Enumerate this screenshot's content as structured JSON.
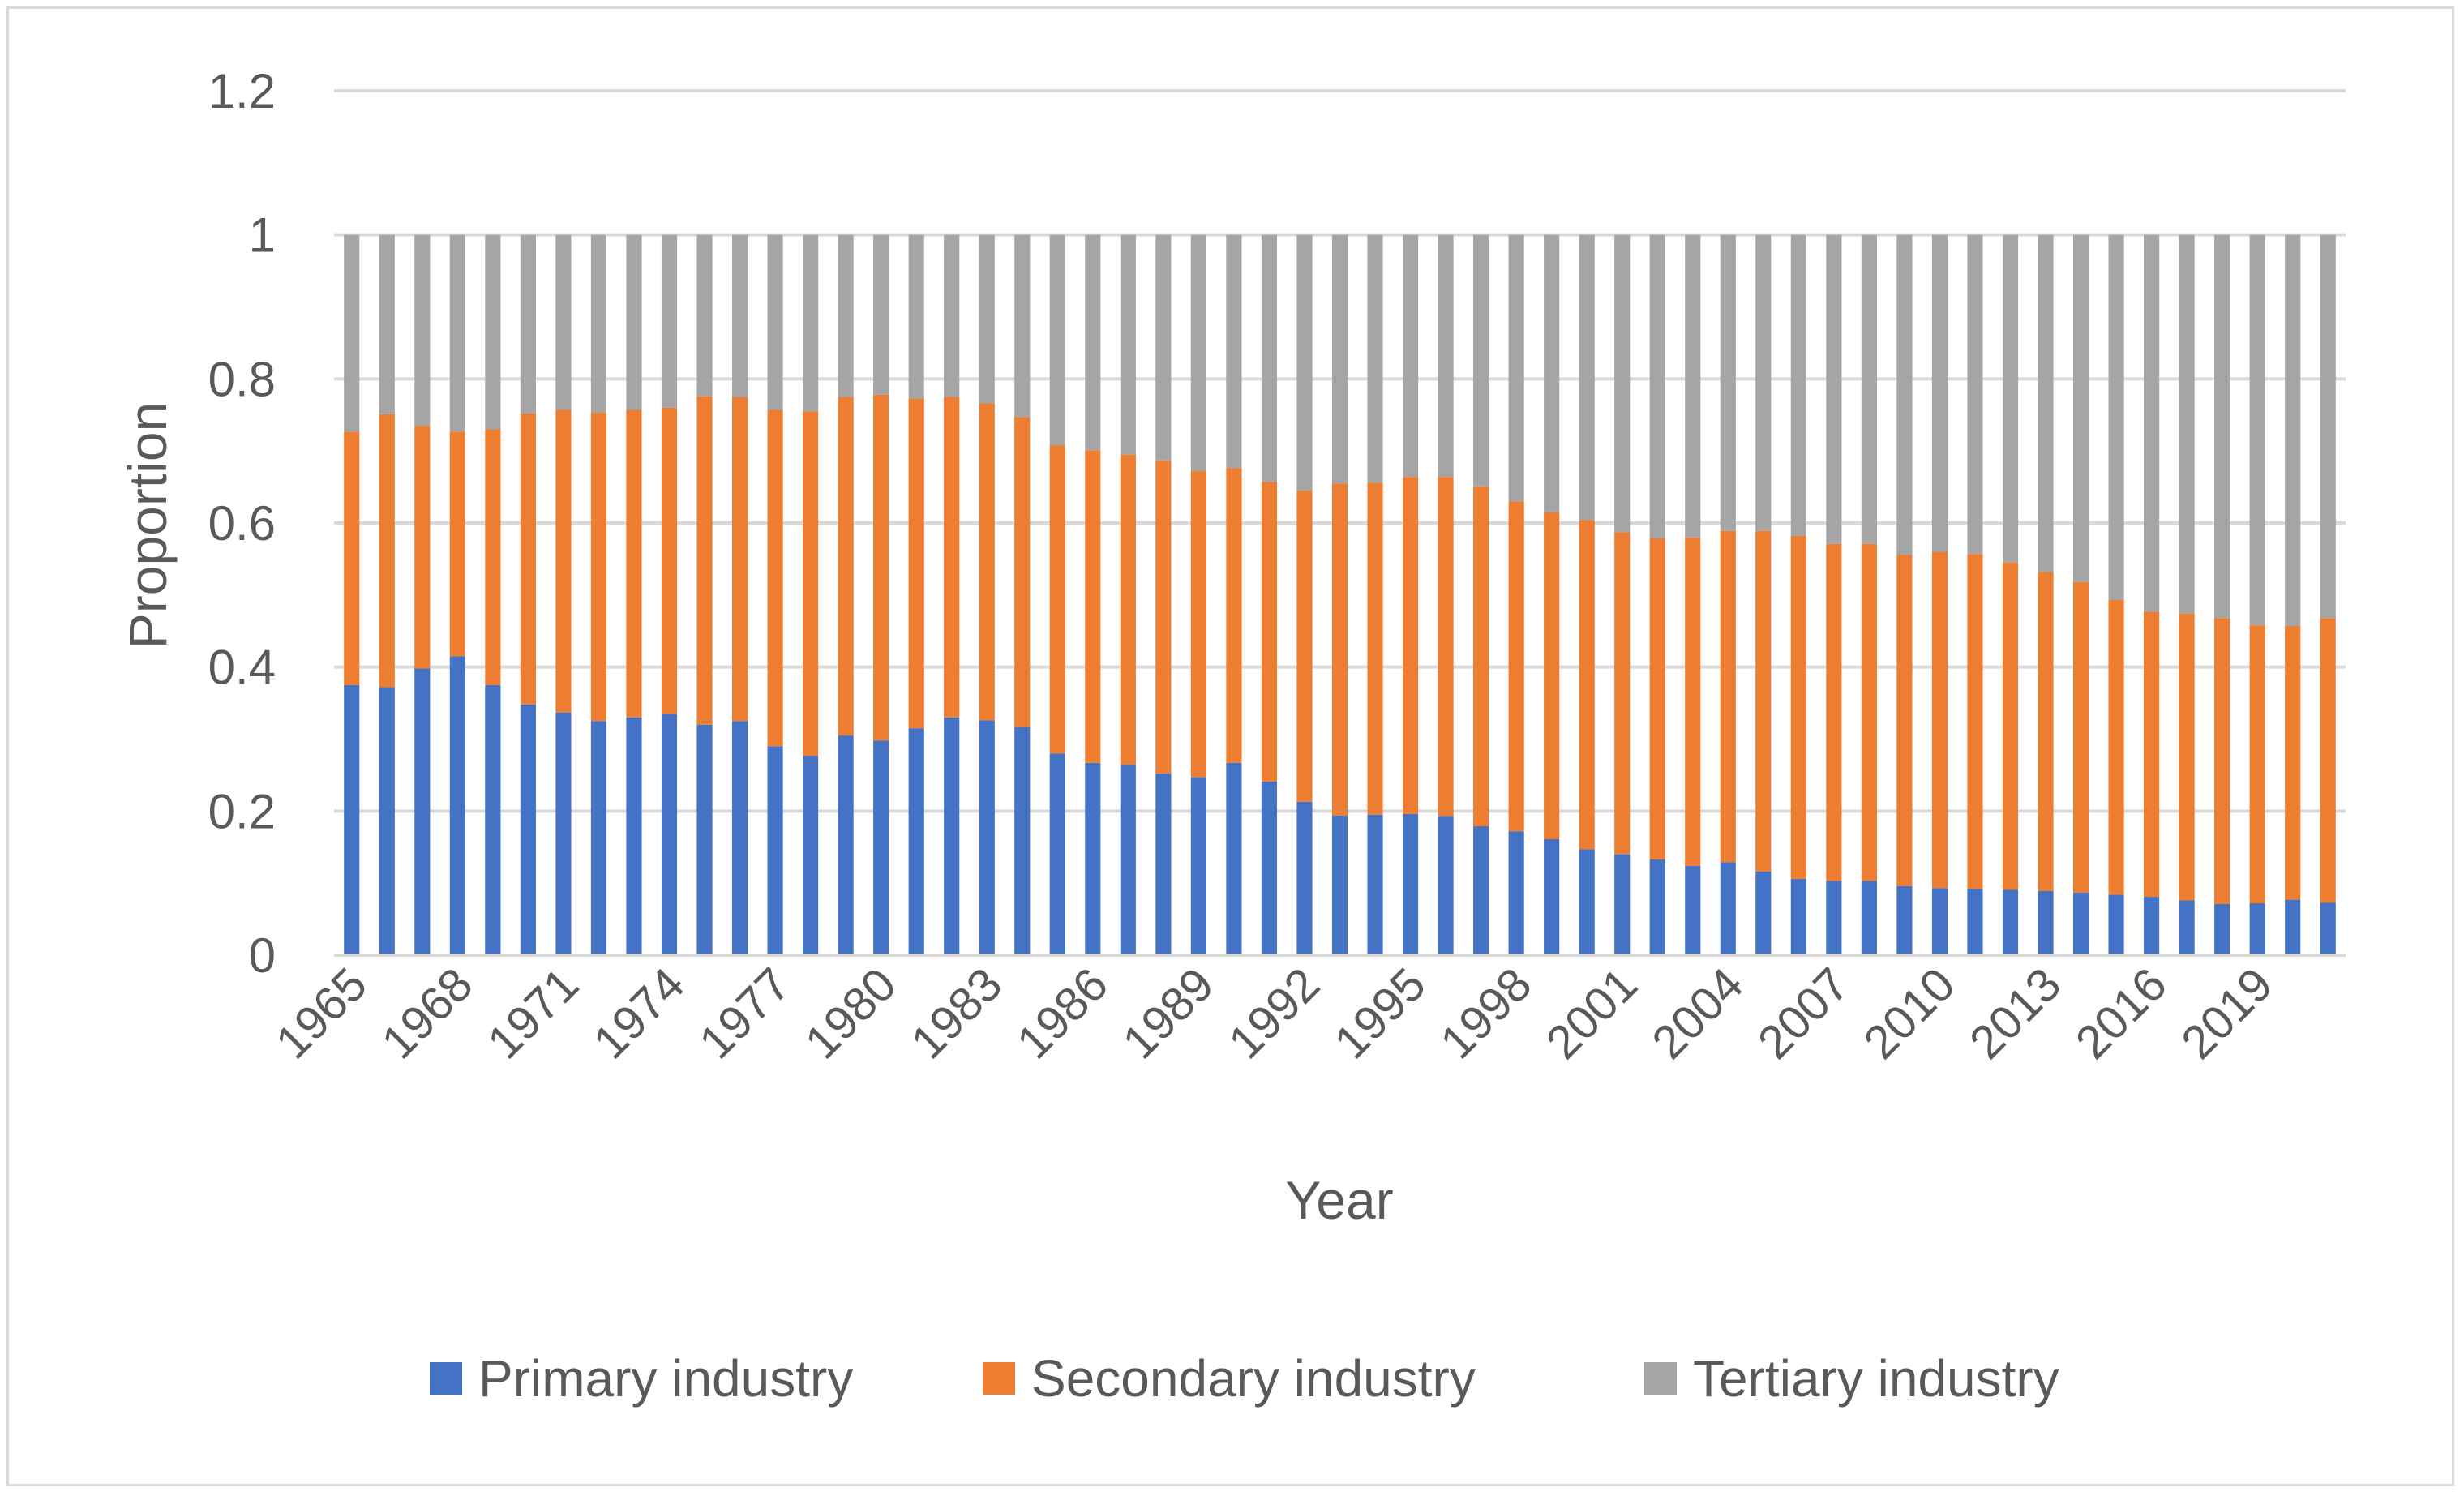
{
  "chart_data": {
    "type": "bar",
    "stacked": true,
    "title": "",
    "xlabel": "Year",
    "ylabel": "Proportion",
    "ylim": [
      0,
      1.2
    ],
    "y_ticks": [
      "0",
      "0.2",
      "0.4",
      "0.6",
      "0.8",
      "1",
      "1.2"
    ],
    "x_tick_labels": [
      "1965",
      "1968",
      "1971",
      "1974",
      "1977",
      "1980",
      "1983",
      "1986",
      "1989",
      "1992",
      "1995",
      "1998",
      "2001",
      "2004",
      "2007",
      "2010",
      "2013",
      "2016",
      "2019"
    ],
    "grid": true,
    "legend_position": "bottom",
    "categories": [
      "1965",
      "1966",
      "1967",
      "1968",
      "1969",
      "1970",
      "1971",
      "1972",
      "1973",
      "1974",
      "1975",
      "1976",
      "1977",
      "1978",
      "1979",
      "1980",
      "1981",
      "1982",
      "1983",
      "1984",
      "1985",
      "1986",
      "1987",
      "1988",
      "1989",
      "1990",
      "1991",
      "1992",
      "1993",
      "1994",
      "1995",
      "1996",
      "1997",
      "1998",
      "1999",
      "2000",
      "2001",
      "2002",
      "2003",
      "2004",
      "2005",
      "2006",
      "2007",
      "2008",
      "2009",
      "2010",
      "2011",
      "2012",
      "2013",
      "2014",
      "2015",
      "2016",
      "2017",
      "2018",
      "2019",
      "2020",
      "2021"
    ],
    "series": [
      {
        "name": "Primary industry",
        "color": "#4472c4",
        "values": [
          0.375,
          0.372,
          0.398,
          0.415,
          0.375,
          0.348,
          0.337,
          0.325,
          0.33,
          0.335,
          0.32,
          0.325,
          0.29,
          0.277,
          0.305,
          0.298,
          0.315,
          0.33,
          0.326,
          0.317,
          0.28,
          0.267,
          0.264,
          0.252,
          0.247,
          0.267,
          0.241,
          0.213,
          0.194,
          0.195,
          0.196,
          0.193,
          0.179,
          0.172,
          0.161,
          0.147,
          0.14,
          0.133,
          0.124,
          0.129,
          0.116,
          0.106,
          0.103,
          0.103,
          0.096,
          0.093,
          0.092,
          0.091,
          0.089,
          0.087,
          0.084,
          0.081,
          0.076,
          0.071,
          0.072,
          0.077,
          0.073
        ]
      },
      {
        "name": "Secondary industry",
        "color": "#ed7d31",
        "values": [
          0.352,
          0.379,
          0.337,
          0.312,
          0.355,
          0.404,
          0.42,
          0.428,
          0.427,
          0.425,
          0.456,
          0.45,
          0.467,
          0.478,
          0.47,
          0.48,
          0.458,
          0.445,
          0.44,
          0.43,
          0.428,
          0.434,
          0.431,
          0.435,
          0.425,
          0.409,
          0.416,
          0.432,
          0.461,
          0.461,
          0.468,
          0.471,
          0.472,
          0.458,
          0.454,
          0.457,
          0.447,
          0.446,
          0.456,
          0.46,
          0.473,
          0.476,
          0.468,
          0.468,
          0.46,
          0.467,
          0.465,
          0.454,
          0.443,
          0.431,
          0.409,
          0.396,
          0.398,
          0.397,
          0.386,
          0.38,
          0.395
        ]
      },
      {
        "name": "Tertiary industry",
        "color": "#a5a5a5",
        "values": [
          0.273,
          0.249,
          0.265,
          0.273,
          0.27,
          0.248,
          0.243,
          0.247,
          0.243,
          0.24,
          0.224,
          0.225,
          0.243,
          0.245,
          0.225,
          0.222,
          0.227,
          0.225,
          0.234,
          0.253,
          0.292,
          0.299,
          0.305,
          0.313,
          0.328,
          0.324,
          0.343,
          0.355,
          0.345,
          0.344,
          0.336,
          0.336,
          0.349,
          0.37,
          0.385,
          0.396,
          0.413,
          0.421,
          0.42,
          0.411,
          0.411,
          0.418,
          0.429,
          0.429,
          0.444,
          0.44,
          0.443,
          0.455,
          0.468,
          0.482,
          0.507,
          0.523,
          0.526,
          0.532,
          0.542,
          0.543,
          0.532
        ]
      }
    ]
  }
}
